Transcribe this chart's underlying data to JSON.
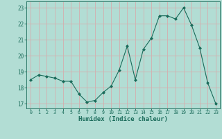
{
  "x": [
    0,
    1,
    2,
    3,
    4,
    5,
    6,
    7,
    8,
    9,
    10,
    11,
    12,
    13,
    14,
    15,
    16,
    17,
    18,
    19,
    20,
    21,
    22,
    23
  ],
  "y": [
    18.5,
    18.8,
    18.7,
    18.6,
    18.4,
    18.4,
    17.6,
    17.1,
    17.2,
    17.7,
    18.1,
    19.1,
    20.6,
    18.5,
    20.4,
    21.1,
    22.5,
    22.5,
    22.3,
    23.0,
    21.9,
    20.5,
    18.3,
    17.0
  ],
  "line_color": "#1a6b5a",
  "bg_color": "#b2ddd4",
  "grid_color": "#d4aeae",
  "xlabel": "Humidex (Indice chaleur)",
  "ylabel_ticks": [
    17,
    18,
    19,
    20,
    21,
    22,
    23
  ],
  "xlim": [
    -0.5,
    23.5
  ],
  "ylim": [
    16.7,
    23.4
  ],
  "tick_color": "#1a6b5a",
  "label_color": "#1a6b5a"
}
